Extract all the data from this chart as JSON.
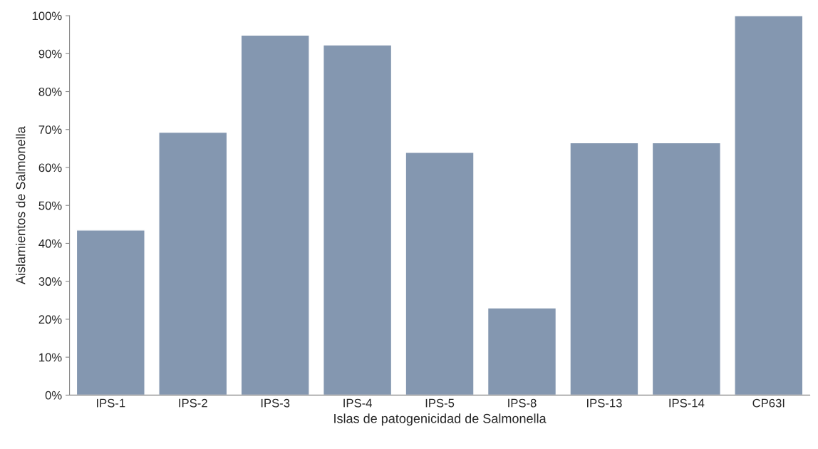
{
  "chart_data": {
    "type": "bar",
    "xlabel": "Islas de patogenicidad de Salmonella",
    "ylabel": "Aislamientos de Salmonella",
    "categories": [
      "IPS-1",
      "IPS-2",
      "IPS-3",
      "IPS-4",
      "IPS-5",
      "IPS-8",
      "IPS-13",
      "IPS-14",
      "CP63I"
    ],
    "values": [
      43.5,
      69.3,
      94.9,
      92.3,
      64.0,
      23.0,
      66.5,
      66.5,
      100
    ],
    "color": "#8497b0",
    "ylim": [
      0,
      100
    ],
    "yticks": [
      {
        "value": 0,
        "label": "0%"
      },
      {
        "value": 10,
        "label": "10%"
      },
      {
        "value": 20,
        "label": "20%"
      },
      {
        "value": 30,
        "label": "30%"
      },
      {
        "value": 40,
        "label": "40%"
      },
      {
        "value": 50,
        "label": "50%"
      },
      {
        "value": 60,
        "label": "60%"
      },
      {
        "value": 70,
        "label": "70%"
      },
      {
        "value": 80,
        "label": "80%"
      },
      {
        "value": 90,
        "label": "90%"
      },
      {
        "value": 100,
        "label": "100%"
      }
    ]
  }
}
